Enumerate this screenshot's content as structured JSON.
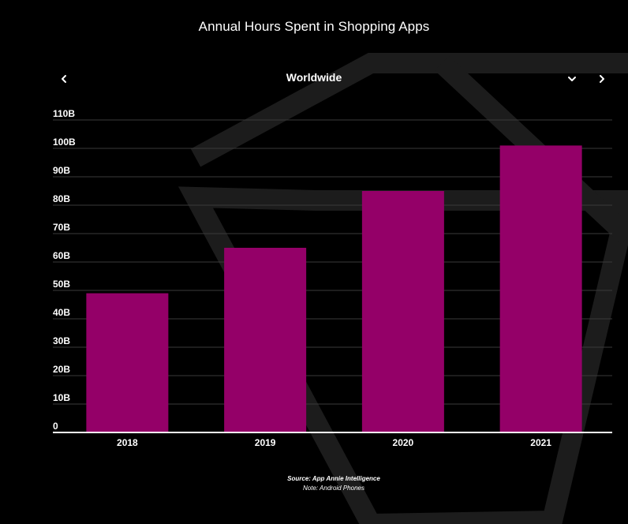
{
  "title": "Annual Hours Spent in Shopping Apps",
  "region_selector": {
    "selected": "Worldwide",
    "prev_icon": "chevron-left-icon",
    "dropdown_icon": "chevron-down-icon",
    "next_icon": "chevron-right-icon"
  },
  "colors": {
    "background": "#000000",
    "bar": "#940068",
    "grid": "#3a3a3a",
    "baseline": "#ffffff",
    "decoration": "#1c1c1c"
  },
  "chart_data": {
    "type": "bar",
    "categories": [
      "2018",
      "2019",
      "2020",
      "2021"
    ],
    "values": [
      49,
      65,
      85,
      101
    ],
    "unit": "B",
    "ylim": [
      0,
      110
    ],
    "ytick_labels": [
      "0",
      "10B",
      "20B",
      "30B",
      "40B",
      "50B",
      "60B",
      "70B",
      "80B",
      "90B",
      "100B",
      "110B"
    ],
    "grid": true,
    "title": "Annual Hours Spent in Shopping Apps",
    "xlabel": "",
    "ylabel": ""
  },
  "footer": {
    "source": "Source: App Annie Intelligence",
    "note": "Note: Android Phones"
  }
}
